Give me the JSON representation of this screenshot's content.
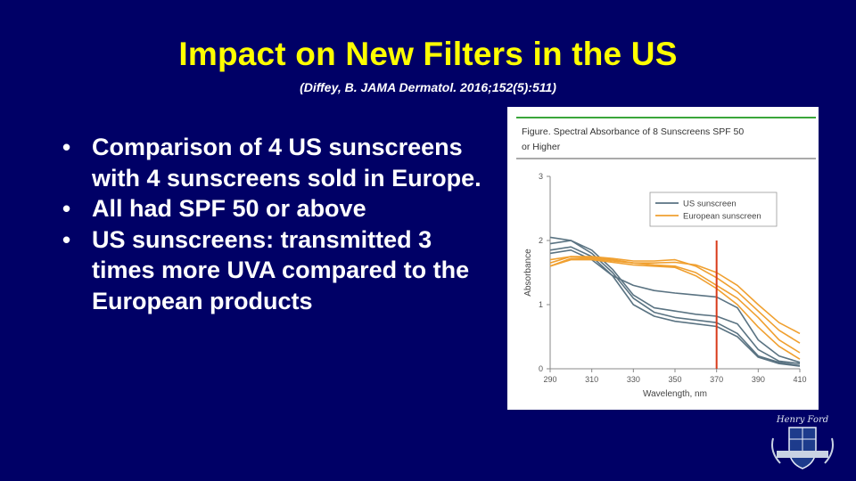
{
  "slide": {
    "title": "Impact on New Filters in the US",
    "citation": "(Diffey, B.  JAMA Dermatol. 2016;152(5):511)",
    "bullets": [
      {
        "text": "Comparison of 4 US sunscreens with 4 sunscreens sold in Europe."
      },
      {
        "text": "All had SPF 50 or above"
      },
      {
        "text": "US sunscreens: transmitted 3 times more UVA compared to the European products"
      }
    ]
  },
  "colors": {
    "background": "#000066",
    "title": "#ffff00",
    "text": "#ffffff",
    "us_series": "#5a7382",
    "eu_series": "#f0a030",
    "marker_line": "#d83a1a",
    "figure_header_rule": "#3aa63a"
  },
  "chart_data": {
    "type": "line",
    "title": "Figure. Spectral Absorbance of 8 Sunscreens SPF 50 or Higher",
    "xlabel": "Wavelength, nm",
    "ylabel": "Absorbance",
    "xlim": [
      290,
      410
    ],
    "ylim": [
      0,
      3
    ],
    "xticks": [
      290,
      310,
      330,
      350,
      370,
      390,
      410
    ],
    "yticks": [
      0,
      1,
      2,
      3
    ],
    "legend": {
      "placement": "top-right",
      "entries": [
        {
          "label": "US sunscreen",
          "color": "#5a7382"
        },
        {
          "label": "European sunscreen",
          "color": "#f0a030"
        }
      ]
    },
    "reference_line": {
      "x": 370,
      "color": "#d83a1a"
    },
    "x": [
      290,
      300,
      310,
      320,
      330,
      340,
      350,
      360,
      370,
      380,
      390,
      400,
      410
    ],
    "series": [
      {
        "group": "US sunscreen",
        "values": [
          2.05,
          2.0,
          1.85,
          1.55,
          1.15,
          0.95,
          0.9,
          0.85,
          0.82,
          0.7,
          0.3,
          0.12,
          0.08
        ]
      },
      {
        "group": "US sunscreen",
        "values": [
          1.95,
          2.0,
          1.8,
          1.5,
          1.1,
          0.88,
          0.8,
          0.76,
          0.72,
          0.55,
          0.2,
          0.1,
          0.05
        ]
      },
      {
        "group": "US sunscreen",
        "values": [
          1.85,
          1.9,
          1.75,
          1.45,
          1.0,
          0.82,
          0.74,
          0.7,
          0.66,
          0.5,
          0.18,
          0.08,
          0.04
        ]
      },
      {
        "group": "US sunscreen",
        "values": [
          1.8,
          1.85,
          1.7,
          1.45,
          1.3,
          1.22,
          1.18,
          1.15,
          1.12,
          0.95,
          0.45,
          0.2,
          0.1
        ]
      },
      {
        "group": "European sunscreen",
        "values": [
          1.6,
          1.72,
          1.72,
          1.68,
          1.65,
          1.65,
          1.66,
          1.62,
          1.5,
          1.3,
          1.0,
          0.72,
          0.55
        ]
      },
      {
        "group": "European sunscreen",
        "values": [
          1.65,
          1.75,
          1.75,
          1.72,
          1.68,
          1.68,
          1.7,
          1.6,
          1.42,
          1.2,
          0.9,
          0.6,
          0.4
        ]
      },
      {
        "group": "European sunscreen",
        "values": [
          1.7,
          1.75,
          1.73,
          1.7,
          1.65,
          1.62,
          1.6,
          1.5,
          1.3,
          1.1,
          0.8,
          0.45,
          0.25
        ]
      },
      {
        "group": "European sunscreen",
        "values": [
          1.6,
          1.7,
          1.7,
          1.66,
          1.62,
          1.6,
          1.58,
          1.45,
          1.25,
          1.0,
          0.65,
          0.35,
          0.15
        ]
      }
    ]
  }
}
